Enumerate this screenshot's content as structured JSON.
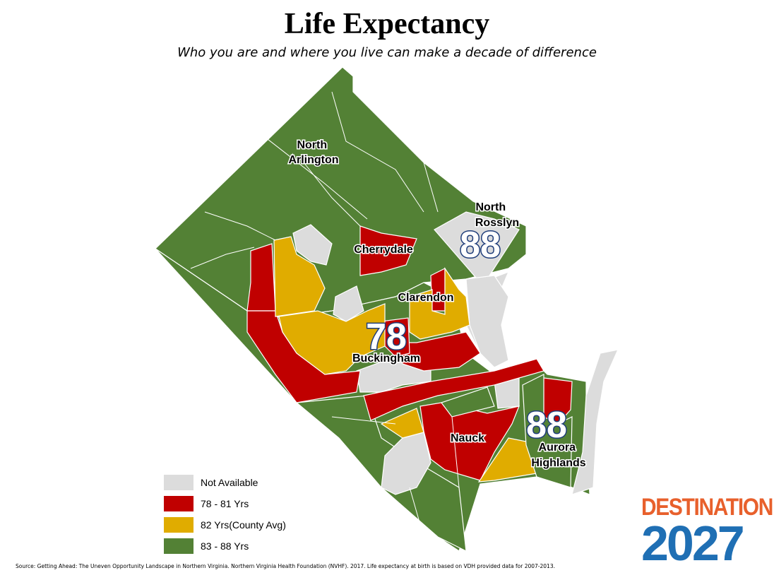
{
  "header": {
    "title": "Life Expectancy",
    "subtitle": "Who you are and where you live can make a decade of difference"
  },
  "map": {
    "labels": {
      "north_arlington": [
        "North",
        "Arlington"
      ],
      "north_rosslyn": [
        "North",
        "Rosslyn"
      ],
      "cherrydale": "Cherrydale",
      "clarendon": "Clarendon",
      "buckingham": "Buckingham",
      "nauck": "Nauck",
      "aurora_highlands": [
        "Aurora",
        "Highlands"
      ]
    },
    "callouts": {
      "north_rosslyn": "88",
      "buckingham": "78",
      "aurora_highlands": "88"
    },
    "colors": {
      "not_available": "#dcdcdc",
      "low": "#c00000",
      "avg": "#e0ac00",
      "high": "#538135"
    }
  },
  "legend": {
    "items": [
      {
        "label": "Not Available",
        "color": "#dcdcdc"
      },
      {
        "label": "78 - 81 Yrs",
        "color": "#c00000"
      },
      {
        "label": "82 Yrs(County Avg)",
        "color": "#e0ac00"
      },
      {
        "label": "83 - 88 Yrs",
        "color": "#538135"
      }
    ]
  },
  "source": "Source: Getting Ahead: The Uneven Opportunity Landscape in Northern Virginia. Northern Virginia Health Foundation (NVHF). 2017. Life expectancy at birth is based on VDH provided data for 2007-2013.",
  "logo": {
    "top": "DESTINATION",
    "bottom": "2027",
    "top_color": "#e8602c",
    "bottom_color": "#1f6fb4"
  }
}
